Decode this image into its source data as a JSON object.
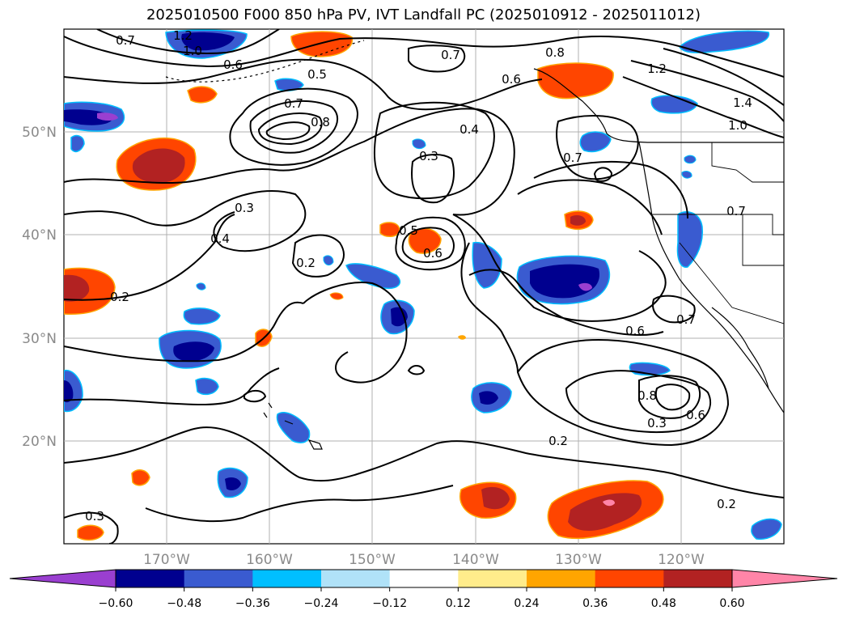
{
  "title": "2025010500 F000 850 hPa PV, IVT Landfall PC (2025010912 - 2025011012)",
  "map": {
    "lon_ticks": [
      "170°W",
      "160°W",
      "150°W",
      "140°W",
      "130°W",
      "120°W"
    ],
    "lat_ticks": [
      "50°N",
      "40°N",
      "30°N",
      "20°N"
    ],
    "contour_labels": [
      "1.2",
      "1.0",
      "0.7",
      "0.6",
      "0.5",
      "0.7",
      "0.8",
      "0.4",
      "0.3",
      "0.3",
      "0.4",
      "0.2",
      "0.5",
      "0.6",
      "0.2",
      "0.7",
      "0.6",
      "0.7",
      "0.8",
      "1.2",
      "1.4",
      "1.0",
      "0.6",
      "0.7",
      "0.8",
      "0.6",
      "0.3",
      "0.2",
      "0.2",
      "0.3",
      "0.7"
    ]
  },
  "colorbar": {
    "ticks": [
      "−0.60",
      "−0.48",
      "−0.36",
      "−0.24",
      "−0.12",
      "0.12",
      "0.24",
      "0.36",
      "0.48",
      "0.60"
    ],
    "colors": [
      "#9a3fd0",
      "#00008f",
      "#3a5bd0",
      "#00bfff",
      "#b0e2f8",
      "#ffffff",
      "#ffec8b",
      "#ffa500",
      "#ff4500",
      "#b22222",
      "#ff85a8"
    ]
  }
}
